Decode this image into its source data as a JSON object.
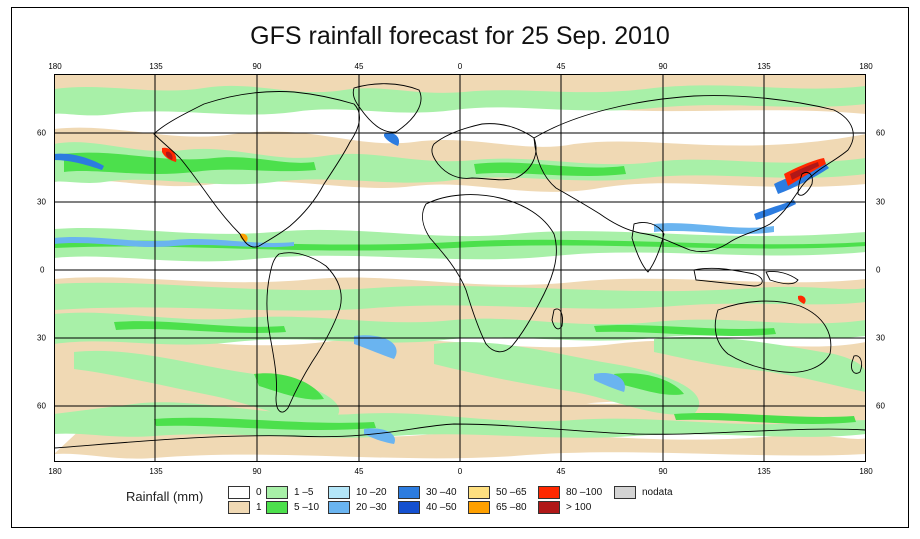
{
  "title": "GFS rainfall forecast for 25 Sep. 2010",
  "axes": {
    "top_lon_labels": [
      "180",
      "135",
      "90",
      "45",
      "0",
      "45",
      "90",
      "135",
      "180"
    ],
    "bottom_lon_labels": [
      "180",
      "135",
      "90",
      "45",
      "0",
      "45",
      "90",
      "135",
      "180"
    ],
    "left_lat_labels": [
      "60",
      "30",
      "0",
      "30",
      "60"
    ],
    "right_lat_labels": [
      "60",
      "30",
      "0",
      "30",
      "60"
    ]
  },
  "legend": {
    "title": "Rainfall (mm)",
    "items": [
      {
        "label": "0",
        "color": "#ffffff"
      },
      {
        "label": "1",
        "color": "#f0d9b4"
      },
      {
        "label": "1 –5",
        "color": "#a8f0a8"
      },
      {
        "label": "5 –10",
        "color": "#4ce04c"
      },
      {
        "label": "10 –20",
        "color": "#b4e6f8"
      },
      {
        "label": "20 –30",
        "color": "#6ab4f0"
      },
      {
        "label": "30 –40",
        "color": "#2c7ce0"
      },
      {
        "label": "40 –50",
        "color": "#1450d0"
      },
      {
        "label": "50 –65",
        "color": "#ffe080"
      },
      {
        "label": "65 –80",
        "color": "#ffa000"
      },
      {
        "label": "80 –100",
        "color": "#ff2800"
      },
      {
        "label": "> 100",
        "color": "#b01818"
      },
      {
        "label": "nodata",
        "color": "#d4d4d4"
      }
    ]
  }
}
